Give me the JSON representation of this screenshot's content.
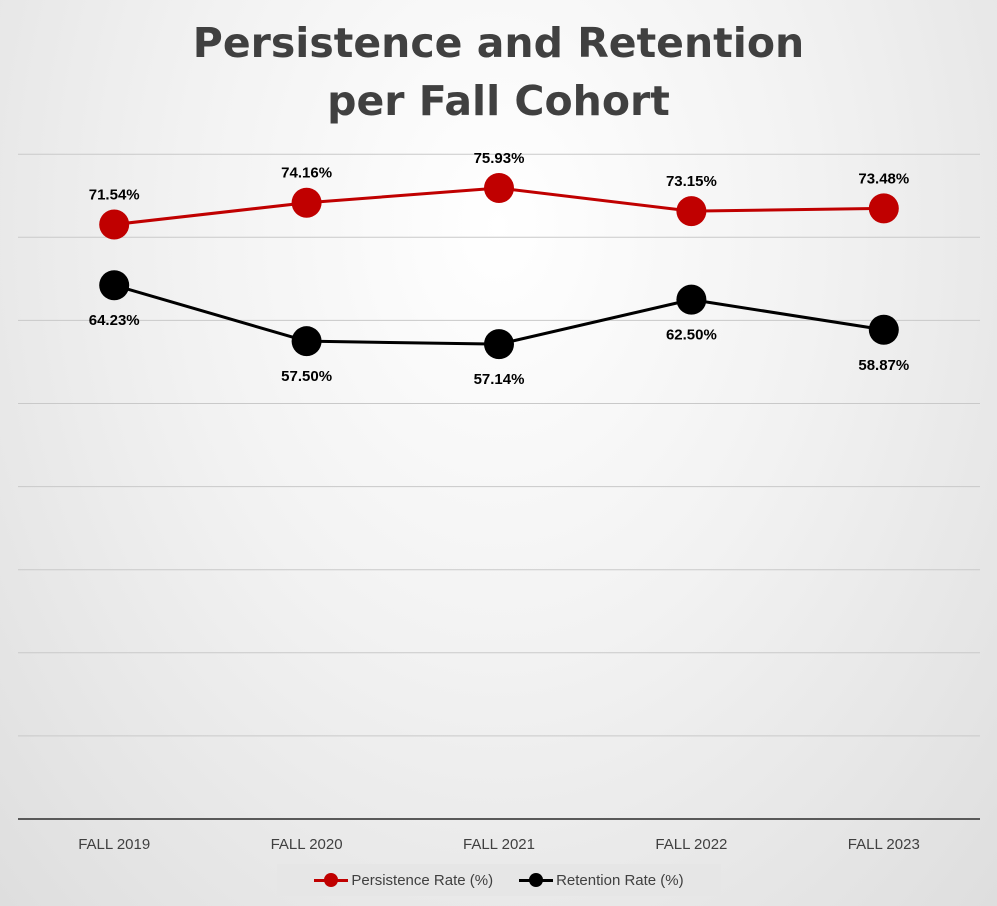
{
  "chart_data": {
    "type": "line",
    "title": "Persistence and Retention per Fall Cohort",
    "title_lines": [
      "Persistence and Retention",
      "per Fall Cohort"
    ],
    "categories": [
      "FALL 2019",
      "FALL 2020",
      "FALL 2021",
      "FALL 2022",
      "FALL 2023"
    ],
    "series": [
      {
        "name": "Persistence Rate (%)",
        "values": [
          71.54,
          74.16,
          75.93,
          73.15,
          73.48
        ],
        "labels": [
          "71.54%",
          "74.16%",
          "75.93%",
          "73.15%",
          "73.48%"
        ],
        "label_position": "above",
        "color": "#c00000"
      },
      {
        "name": "Retention Rate (%)",
        "values": [
          64.23,
          57.5,
          57.14,
          62.5,
          58.87
        ],
        "labels": [
          "64.23%",
          "57.50%",
          "57.14%",
          "62.50%",
          "58.87%"
        ],
        "label_position": "below",
        "color": "#000000"
      }
    ],
    "ylim": [
      0,
      80
    ],
    "y_gridline_step": 10,
    "y_tick_labels_shown": false,
    "grid": true,
    "legend": "bottom"
  }
}
